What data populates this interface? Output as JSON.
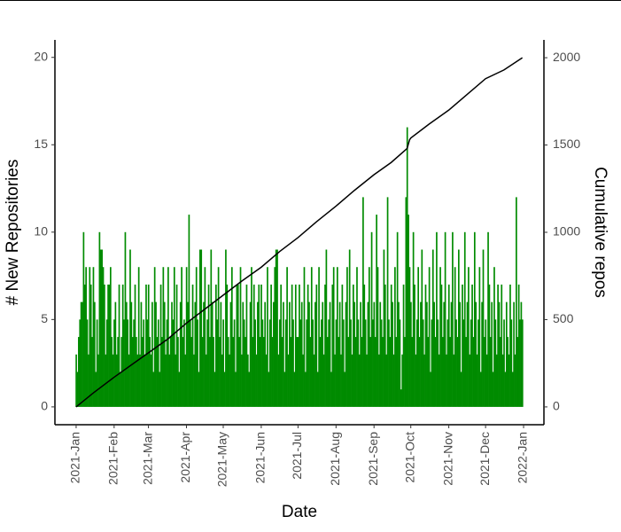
{
  "chart_data": {
    "type": "bar",
    "xlabel": "Date",
    "ylabel": "# New Repositories",
    "y2label": "Cumulative repos",
    "xlim": [
      -17.3,
      381.6
    ],
    "ylim": [
      -1.02,
      21.0
    ],
    "y2lim": [
      -102,
      2102
    ],
    "xticks": [
      {
        "value": 0,
        "label": "2021-Jan"
      },
      {
        "value": 31,
        "label": "2021-Feb"
      },
      {
        "value": 59,
        "label": "2021-Mar"
      },
      {
        "value": 90,
        "label": "2021-Apr"
      },
      {
        "value": 120,
        "label": "2021-May"
      },
      {
        "value": 151,
        "label": "2021-Jun"
      },
      {
        "value": 181,
        "label": "2021-Jul"
      },
      {
        "value": 212,
        "label": "2021-Aug"
      },
      {
        "value": 243,
        "label": "2021-Sep"
      },
      {
        "value": 273,
        "label": "2021-Oct"
      },
      {
        "value": 304,
        "label": "2021-Nov"
      },
      {
        "value": 334,
        "label": "2021-Dec"
      },
      {
        "value": 365,
        "label": "2022-Jan"
      }
    ],
    "yticks": [
      0,
      5,
      10,
      15,
      20
    ],
    "y2ticks": [
      0,
      500,
      1000,
      1500,
      2000
    ],
    "series": [
      {
        "type": "bar",
        "color": "#008b00",
        "x": [
          0,
          1,
          2,
          3,
          4,
          5,
          6,
          7,
          8,
          9,
          10,
          11,
          12,
          13,
          14,
          15,
          16,
          17,
          18,
          19,
          20,
          21,
          22,
          23,
          24,
          25,
          26,
          27,
          28,
          29,
          30,
          31,
          32,
          33,
          34,
          35,
          36,
          37,
          38,
          39,
          40,
          41,
          42,
          43,
          44,
          45,
          46,
          47,
          48,
          49,
          50,
          51,
          52,
          53,
          54,
          55,
          56,
          57,
          58,
          59,
          60,
          61,
          62,
          63,
          64,
          65,
          66,
          67,
          68,
          69,
          70,
          71,
          72,
          73,
          74,
          75,
          76,
          77,
          78,
          79,
          80,
          81,
          82,
          83,
          84,
          85,
          86,
          87,
          88,
          89,
          90,
          91,
          92,
          93,
          94,
          95,
          96,
          97,
          98,
          99,
          100,
          101,
          102,
          103,
          104,
          105,
          106,
          107,
          108,
          109,
          110,
          111,
          112,
          113,
          114,
          115,
          116,
          117,
          118,
          119,
          120,
          121,
          122,
          123,
          124,
          125,
          126,
          127,
          128,
          129,
          130,
          131,
          132,
          133,
          134,
          135,
          136,
          137,
          138,
          139,
          140,
          141,
          142,
          143,
          144,
          145,
          146,
          147,
          148,
          149,
          150,
          151,
          152,
          153,
          154,
          155,
          156,
          157,
          158,
          159,
          160,
          161,
          162,
          163,
          164,
          165,
          166,
          167,
          168,
          169,
          170,
          171,
          172,
          173,
          174,
          175,
          176,
          177,
          178,
          179,
          180,
          181,
          182,
          183,
          184,
          185,
          186,
          187,
          188,
          189,
          190,
          191,
          192,
          193,
          194,
          195,
          196,
          197,
          198,
          199,
          200,
          201,
          202,
          203,
          204,
          205,
          206,
          207,
          208,
          209,
          210,
          211,
          212,
          213,
          214,
          215,
          216,
          217,
          218,
          219,
          220,
          221,
          222,
          223,
          224,
          225,
          226,
          227,
          228,
          229,
          230,
          231,
          232,
          233,
          234,
          235,
          236,
          237,
          238,
          239,
          240,
          241,
          242,
          243,
          244,
          245,
          246,
          247,
          248,
          249,
          250,
          251,
          252,
          253,
          254,
          255,
          256,
          257,
          258,
          259,
          260,
          261,
          262,
          263,
          264,
          265,
          266,
          267,
          268,
          269,
          270,
          271,
          272,
          273,
          274,
          275,
          276,
          277,
          278,
          279,
          280,
          281,
          282,
          283,
          284,
          285,
          286,
          287,
          288,
          289,
          290,
          291,
          292,
          293,
          294,
          295,
          296,
          297,
          298,
          299,
          300,
          301,
          302,
          303,
          304,
          305,
          306,
          307,
          308,
          309,
          310,
          311,
          312,
          313,
          314,
          315,
          316,
          317,
          318,
          319,
          320,
          321,
          322,
          323,
          324,
          325,
          326,
          327,
          328,
          329,
          330,
          331,
          332,
          333,
          334,
          335,
          336,
          337,
          338,
          339,
          340,
          341,
          342,
          343,
          344,
          345,
          346,
          347,
          348,
          349,
          350,
          351,
          352,
          353,
          354,
          355,
          356,
          357,
          358,
          359,
          360,
          361,
          362,
          363,
          364
        ],
        "values": [
          3,
          2,
          4,
          5,
          6,
          6,
          10,
          7,
          8,
          5,
          3,
          8,
          7,
          4,
          8,
          6,
          2,
          5,
          3,
          10,
          9,
          9,
          8,
          7,
          3,
          5,
          7,
          7,
          8,
          4,
          3,
          5,
          6,
          3,
          4,
          7,
          2,
          4,
          7,
          5,
          10,
          6,
          5,
          3,
          9,
          6,
          4,
          5,
          7,
          4,
          3,
          8,
          3,
          6,
          4,
          5,
          3,
          7,
          5,
          7,
          4,
          3,
          6,
          2,
          8,
          6,
          4,
          5,
          2,
          7,
          4,
          8,
          6,
          3,
          5,
          8,
          3,
          4,
          6,
          5,
          8,
          3,
          7,
          4,
          2,
          6,
          8,
          4,
          5,
          3,
          8,
          6,
          11,
          5,
          4,
          7,
          3,
          6,
          8,
          5,
          2,
          9,
          9,
          4,
          6,
          8,
          3,
          5,
          7,
          4,
          9,
          6,
          4,
          2,
          7,
          5,
          8,
          4,
          6,
          3,
          5,
          2,
          9,
          7,
          4,
          3,
          6,
          8,
          4,
          5,
          2,
          7,
          7,
          4,
          8,
          3,
          6,
          5,
          4,
          7,
          3,
          2,
          6,
          8,
          4,
          7,
          5,
          3,
          6,
          7,
          4,
          7,
          5,
          4,
          6,
          3,
          8,
          2,
          5,
          7,
          4,
          6,
          8,
          9,
          9,
          3,
          5,
          7,
          4,
          6,
          2,
          5,
          8,
          3,
          6,
          4,
          7,
          5,
          2,
          7,
          4,
          4,
          7,
          5,
          6,
          3,
          8,
          2,
          5,
          7,
          6,
          4,
          8,
          5,
          3,
          6,
          7,
          2,
          8,
          4,
          5,
          6,
          3,
          7,
          9,
          4,
          5,
          6,
          2,
          7,
          8,
          3,
          5,
          8,
          4,
          6,
          3,
          7,
          5,
          2,
          6,
          8,
          4,
          9,
          5,
          3,
          7,
          6,
          4,
          8,
          5,
          3,
          6,
          4,
          12,
          7,
          5,
          3,
          6,
          8,
          4,
          10,
          5,
          6,
          4,
          11,
          8,
          3,
          6,
          5,
          4,
          9,
          7,
          3,
          12,
          5,
          4,
          7,
          6,
          3,
          8,
          4,
          10,
          6,
          5,
          1,
          3,
          7,
          4,
          12,
          16,
          11,
          8,
          6,
          4,
          10,
          7,
          3,
          5,
          8,
          4,
          6,
          9,
          5,
          3,
          7,
          6,
          4,
          8,
          2,
          5,
          9,
          6,
          4,
          10,
          5,
          3,
          8,
          7,
          4,
          6,
          10,
          3,
          5,
          7,
          4,
          6,
          10,
          3,
          8,
          5,
          4,
          9,
          6,
          2,
          7,
          5,
          10,
          4,
          6,
          8,
          3,
          5,
          7,
          4,
          10,
          6,
          3,
          5,
          8,
          2,
          6,
          9,
          4,
          5,
          3,
          10,
          7,
          4,
          6,
          2,
          8,
          5,
          3,
          7,
          6,
          4,
          7,
          3,
          5,
          2,
          6,
          4,
          3,
          7,
          5,
          2,
          6,
          3,
          12,
          4,
          7,
          5,
          6,
          5
        ]
      },
      {
        "type": "line",
        "axis": "y2",
        "color": "#000000",
        "x": [
          0,
          14,
          31,
          45,
          59,
          75,
          90,
          105,
          120,
          135,
          151,
          166,
          181,
          196,
          212,
          227,
          243,
          257,
          270,
          272,
          273,
          288,
          304,
          319,
          334,
          349,
          364
        ],
        "values": [
          0,
          80,
          170,
          240,
          310,
          390,
          480,
          560,
          640,
          720,
          800,
          890,
          970,
          1060,
          1150,
          1240,
          1330,
          1400,
          1480,
          1530,
          1540,
          1620,
          1700,
          1790,
          1880,
          1930,
          2000
        ]
      }
    ]
  }
}
